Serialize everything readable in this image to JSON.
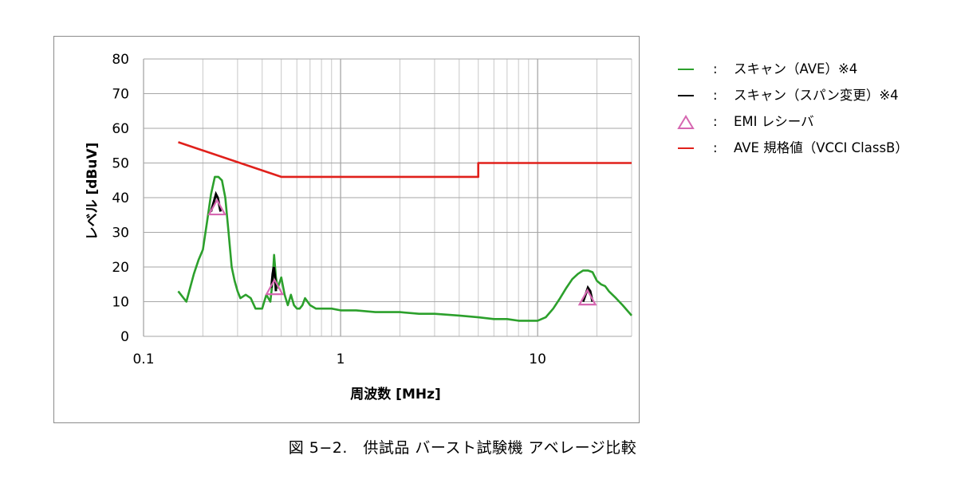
{
  "caption": "図 5−2.　供試品 バースト試験機 アベレージ比較",
  "chart_data": {
    "type": "line",
    "x_scale": "log",
    "xlim": [
      0.1,
      30
    ],
    "ylim": [
      0,
      80
    ],
    "xlabel": "周波数 [MHz]",
    "ylabel": "レベル [dBuV]",
    "x_ticks": [
      {
        "value": 0.1,
        "label": "0.1"
      },
      {
        "value": 1,
        "label": "1"
      },
      {
        "value": 10,
        "label": "10"
      }
    ],
    "y_ticks": [
      {
        "value": 0,
        "label": "0"
      },
      {
        "value": 10,
        "label": "10"
      },
      {
        "value": 20,
        "label": "20"
      },
      {
        "value": 30,
        "label": "30"
      },
      {
        "value": 40,
        "label": "40"
      },
      {
        "value": 50,
        "label": "50"
      },
      {
        "value": 60,
        "label": "60"
      },
      {
        "value": 70,
        "label": "70"
      },
      {
        "value": 80,
        "label": "80"
      }
    ],
    "grid": true,
    "legend_position": "right",
    "series": [
      {
        "name": "スキャン（AVE）※4",
        "color": "#2ca02c",
        "x": [
          0.15,
          0.165,
          0.18,
          0.19,
          0.2,
          0.21,
          0.22,
          0.23,
          0.24,
          0.25,
          0.26,
          0.27,
          0.28,
          0.29,
          0.3,
          0.31,
          0.33,
          0.35,
          0.37,
          0.4,
          0.42,
          0.44,
          0.45,
          0.46,
          0.47,
          0.48,
          0.5,
          0.52,
          0.54,
          0.56,
          0.58,
          0.6,
          0.62,
          0.64,
          0.66,
          0.7,
          0.75,
          0.8,
          0.9,
          1.0,
          1.2,
          1.5,
          2.0,
          2.5,
          3.0,
          4.0,
          5.0,
          6.0,
          7.0,
          8.0,
          9.0,
          10.0,
          11.0,
          12.0,
          13.0,
          14.0,
          15.0,
          16.0,
          17.0,
          18.0,
          19.0,
          20.0,
          21.0,
          22.0,
          23.0,
          25.0,
          27.0,
          30.0
        ],
        "y": [
          13,
          10,
          18,
          22,
          25,
          33,
          41,
          46,
          46,
          45,
          40,
          30,
          20,
          16,
          13,
          11,
          12,
          11,
          8,
          8,
          12,
          10,
          15,
          23.5,
          17,
          14,
          17,
          12,
          9,
          12,
          9,
          8,
          8,
          9,
          11,
          9,
          8,
          8,
          8,
          7.5,
          7.5,
          7,
          7,
          6.5,
          6.5,
          6,
          5.5,
          5,
          5,
          4.5,
          4.5,
          4.5,
          5.5,
          8,
          11,
          14,
          16.5,
          18,
          19,
          19,
          18.5,
          16,
          15,
          14.5,
          13,
          11,
          9,
          6
        ]
      },
      {
        "name": "スキャン（スパン変更）※4",
        "color": "#000000",
        "segments": [
          {
            "x": [
              0.22,
              0.228,
              0.233,
              0.238,
              0.242,
              0.246
            ],
            "y": [
              36,
              39,
              41,
              40,
              38,
              36
            ]
          },
          {
            "x": [
              0.445,
              0.452,
              0.458,
              0.465,
              0.47
            ],
            "y": [
              14,
              18,
              20,
              17,
              13
            ]
          },
          {
            "x": [
              17.0,
              17.5,
              18.0,
              18.5,
              19.0
            ],
            "y": [
              10,
              12,
              14,
              13,
              10
            ]
          }
        ]
      },
      {
        "name": "EMI レシーバ",
        "color": "#d667b1",
        "marker": "triangle",
        "x": [
          0.236,
          0.462,
          17.9
        ],
        "y": [
          37,
          14,
          11
        ]
      },
      {
        "name": "AVE 規格値（VCCI ClassB）",
        "color": "#e0201b",
        "x": [
          0.15,
          0.5,
          5.0,
          5.0,
          30.0
        ],
        "y": [
          56,
          46,
          46,
          50,
          50
        ]
      }
    ]
  },
  "legend": [
    {
      "name": "スキャン（AVE）※4",
      "colon": ":",
      "color": "#2ca02c",
      "symbol": "line"
    },
    {
      "name": "スキャン（スパン変更）※4",
      "colon": ":",
      "color": "#000000",
      "symbol": "line"
    },
    {
      "name": "EMI レシーバ",
      "colon": ":",
      "color": "#d667b1",
      "symbol": "triangle"
    },
    {
      "name": "AVE 規格値（VCCI ClassB）",
      "colon": ":",
      "color": "#e0201b",
      "symbol": "line"
    }
  ]
}
